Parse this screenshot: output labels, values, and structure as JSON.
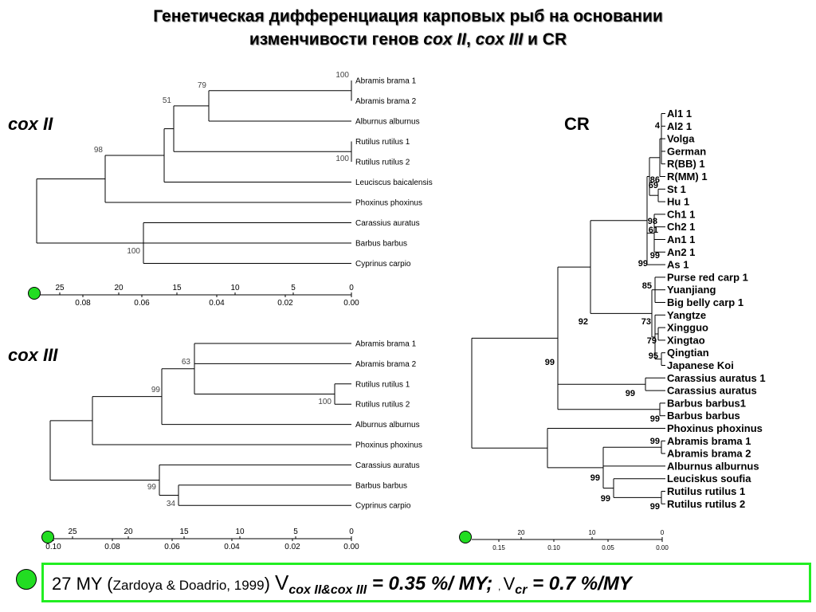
{
  "title": {
    "line1": "Генетическая дифференциация карповых рыб на основании",
    "line2_prefix": "изменчивости генов ",
    "line2_cox2": "cox II",
    "line2_sep": ", ",
    "line2_cox3": "cox III",
    "line2_and": " и ",
    "line2_cr": "CR"
  },
  "panels": {
    "cox2": {
      "label": "cox II",
      "taxa": [
        "Abramis brama 1",
        "Abramis brama 2",
        "Alburnus alburnus",
        "Rutilus rutilus 1",
        "Rutilus rutilus 2",
        "Leuciscus baicalensis",
        "Phoxinus phoxinus",
        "Carassius auratus",
        "Barbus barbus",
        "Cyprinus carpio"
      ],
      "support": [
        "100",
        "79",
        "51",
        "98",
        "100",
        "100"
      ],
      "axis_top": [
        "25",
        "20",
        "15",
        "10",
        "5",
        "0"
      ],
      "axis_bottom": [
        "0.08",
        "0.06",
        "0.04",
        "0.02",
        "0.00"
      ]
    },
    "cox3": {
      "label": "cox III",
      "taxa": [
        "Abramis brama 1",
        "Abramis brama 2",
        "Rutilus rutilus 1",
        "Rutilus rutilus 2",
        "Alburnus alburnus",
        "Phoxinus phoxinus",
        "Carassius auratus",
        "Barbus barbus",
        "Cyprinus carpio"
      ],
      "support": [
        "63",
        "100",
        "99",
        "99",
        "34"
      ],
      "axis_top": [
        "25",
        "20",
        "15",
        "10",
        "5",
        "0"
      ],
      "axis_bottom": [
        "0.10",
        "0.08",
        "0.06",
        "0.04",
        "0.02",
        "0.00"
      ]
    },
    "cr": {
      "label": "CR",
      "taxa": [
        "Al1 1",
        "Al2 1",
        "Volga",
        "German",
        "R(BB) 1",
        "R(MM) 1",
        "St 1",
        "Hu 1",
        "Ch1 1",
        "Ch2 1",
        "An1 1",
        "An2 1",
        "As 1",
        "Purse red carp 1",
        "Yuanjiang",
        "Big belly carp 1",
        "Yangtze",
        "Xingguo",
        "Xingtao",
        "Qingtian",
        "Japanese Koi",
        "Carassius auratus 1",
        "Carassius auratus",
        "Barbus barbus1",
        "Barbus barbus",
        "Phoxinus phoxinus",
        "Abramis brama 1",
        "Abramis brama 2",
        "Alburnus alburnus",
        "Leuciskus soufia",
        "Rutilus rutilus 1",
        "Rutilus rutilus 2"
      ],
      "support": [
        "4",
        "23",
        "86",
        "69",
        "98",
        "61",
        "99",
        "99",
        "98",
        "85",
        "73",
        "79",
        "95",
        "92",
        "99",
        "99",
        "99",
        "99",
        "99",
        "99",
        "99"
      ],
      "axis_top": [
        "20",
        "10",
        "0"
      ],
      "axis_bottom": [
        "0.15",
        "0.10",
        "0.05",
        "0.00"
      ]
    }
  },
  "footer": {
    "my": "27 MY (",
    "citation": "Zardoya & Doadrio, 1999",
    "close": ")  ",
    "v1_letter": "V",
    "v1_sub": "cox II&cox III",
    "v1_value": " = 0.35 %/ MY; ",
    "comma": ", ",
    "v2_letter": "V",
    "v2_sub": "cr",
    "v2_value": " = 0.7 %/MY"
  },
  "colors": {
    "marker": "#22dd22",
    "footer_border": "#22ee22",
    "tree_line": "#000000"
  }
}
